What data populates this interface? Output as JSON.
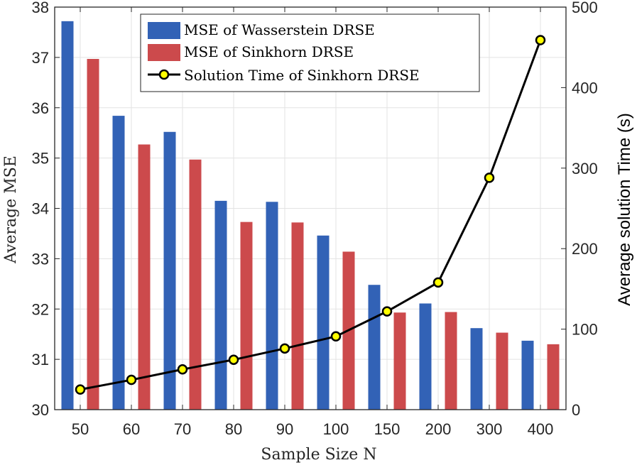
{
  "chart_data": {
    "type": "bar",
    "title": "",
    "categories": [
      "50",
      "60",
      "70",
      "80",
      "90",
      "100",
      "150",
      "200",
      "300",
      "400"
    ],
    "series": [
      {
        "name": "MSE of Wasserstein DRSE",
        "kind": "bar",
        "axis": "left",
        "color": "#3262b6",
        "values": [
          37.72,
          35.84,
          35.52,
          34.15,
          34.13,
          33.46,
          32.48,
          32.11,
          31.62,
          31.37
        ]
      },
      {
        "name": "MSE of Sinkhorn DRSE",
        "kind": "bar",
        "axis": "left",
        "color": "#cc4a4c",
        "values": [
          36.97,
          35.27,
          34.97,
          33.73,
          33.72,
          33.14,
          31.93,
          31.94,
          31.53,
          31.3
        ]
      },
      {
        "name": "Solution Time of Sinkhorn DRSE",
        "kind": "line",
        "axis": "right",
        "color": "#000000",
        "marker_fill": "#ffff00",
        "values": [
          25,
          37,
          50,
          62,
          76,
          91,
          122,
          158,
          288,
          459
        ]
      }
    ],
    "xlabel": "Sample Size N",
    "ylabel": "Average MSE",
    "y2label": "Average solution Time (s)",
    "ylim": [
      30,
      38
    ],
    "y2lim": [
      0,
      500
    ],
    "yticks": [
      "30",
      "31",
      "32",
      "33",
      "34",
      "35",
      "36",
      "37",
      "38"
    ],
    "y2ticks": [
      "0",
      "100",
      "200",
      "300",
      "400",
      "500"
    ],
    "grid": true,
    "legend_position": "top-center"
  }
}
